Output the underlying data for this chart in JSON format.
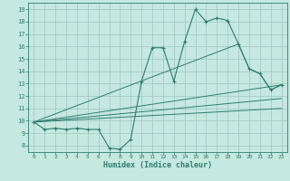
{
  "xlabel": "Humidex (Indice chaleur)",
  "bg_color": "#c5e8e0",
  "grid_color": "#9ec8c0",
  "line_color": "#2e7d6e",
  "xlim": [
    -0.5,
    23.5
  ],
  "ylim": [
    7.5,
    19.5
  ],
  "xticks": [
    0,
    1,
    2,
    3,
    4,
    5,
    6,
    7,
    8,
    9,
    10,
    11,
    12,
    13,
    14,
    15,
    16,
    17,
    18,
    19,
    20,
    21,
    22,
    23
  ],
  "yticks": [
    8,
    9,
    10,
    11,
    12,
    13,
    14,
    15,
    16,
    17,
    18,
    19
  ],
  "line1_x": [
    0,
    1,
    2,
    3,
    4,
    5,
    6,
    7,
    8,
    9,
    10,
    11,
    12,
    13,
    14,
    15,
    16,
    17,
    18,
    19,
    20,
    21,
    22,
    23
  ],
  "line1_y": [
    9.9,
    9.3,
    9.4,
    9.3,
    9.4,
    9.3,
    9.3,
    7.8,
    7.7,
    8.5,
    13.2,
    15.9,
    15.9,
    13.2,
    16.4,
    19.0,
    18.0,
    18.3,
    18.1,
    16.2,
    14.2,
    13.8,
    12.5,
    12.9
  ],
  "line2_x": [
    0,
    19,
    20,
    21,
    22,
    23
  ],
  "line2_y": [
    9.9,
    16.2,
    14.2,
    13.8,
    12.5,
    12.9
  ],
  "line3_x": [
    0,
    23
  ],
  "line3_y": [
    9.9,
    12.9
  ],
  "line4_x": [
    0,
    23
  ],
  "line4_y": [
    9.9,
    11.8
  ],
  "line5_x": [
    0,
    23
  ],
  "line5_y": [
    9.9,
    11.0
  ]
}
